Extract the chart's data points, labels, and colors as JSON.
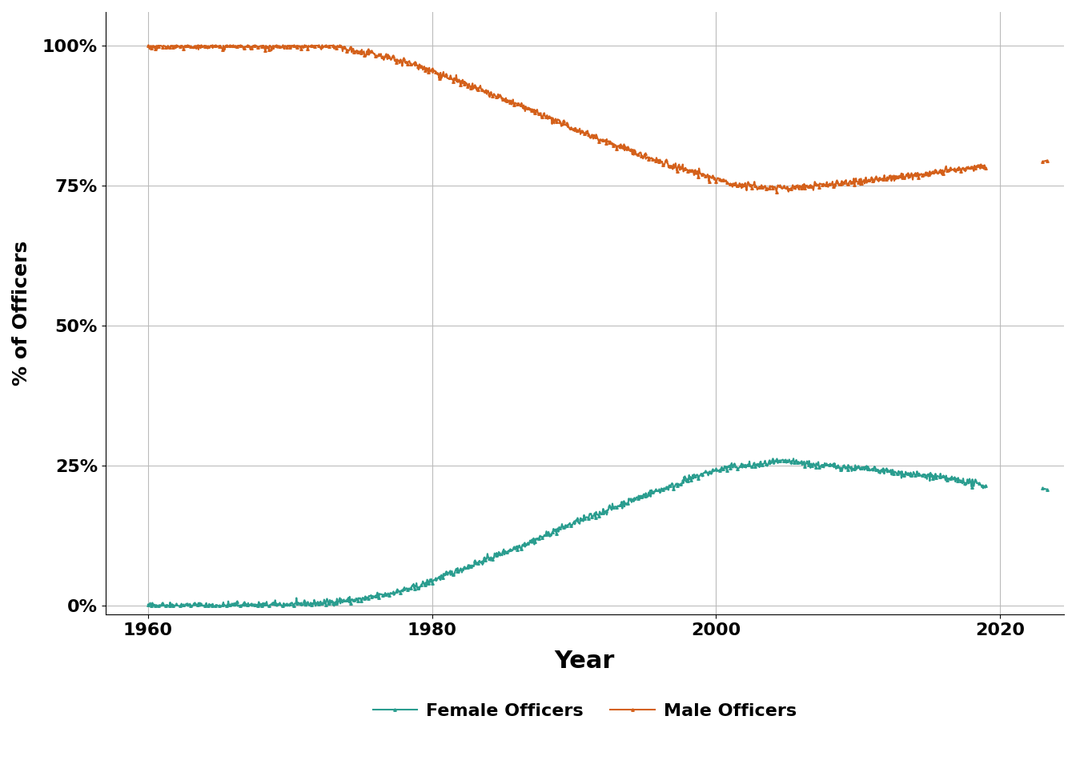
{
  "xlabel": "Year",
  "ylabel": "% of Officers",
  "xlim": [
    1957,
    2024.5
  ],
  "ylim": [
    -0.015,
    1.06
  ],
  "yticks": [
    0.0,
    0.25,
    0.5,
    0.75,
    1.0
  ],
  "ytick_labels": [
    "0%",
    "25%",
    "50%",
    "75%",
    "100%"
  ],
  "xticks": [
    1960,
    1980,
    2000,
    2020
  ],
  "female_color": "#2a9d8f",
  "male_color": "#d4601a",
  "background_color": "#ffffff",
  "grid_color": "#bbbbbb",
  "legend_female": "Female Officers",
  "legend_male": "Male Officers",
  "marker": "^",
  "marker_size": 2.5,
  "line_width": 1.5,
  "xlabel_fontsize": 22,
  "ylabel_fontsize": 18,
  "tick_fontsize": 16,
  "legend_fontsize": 16
}
